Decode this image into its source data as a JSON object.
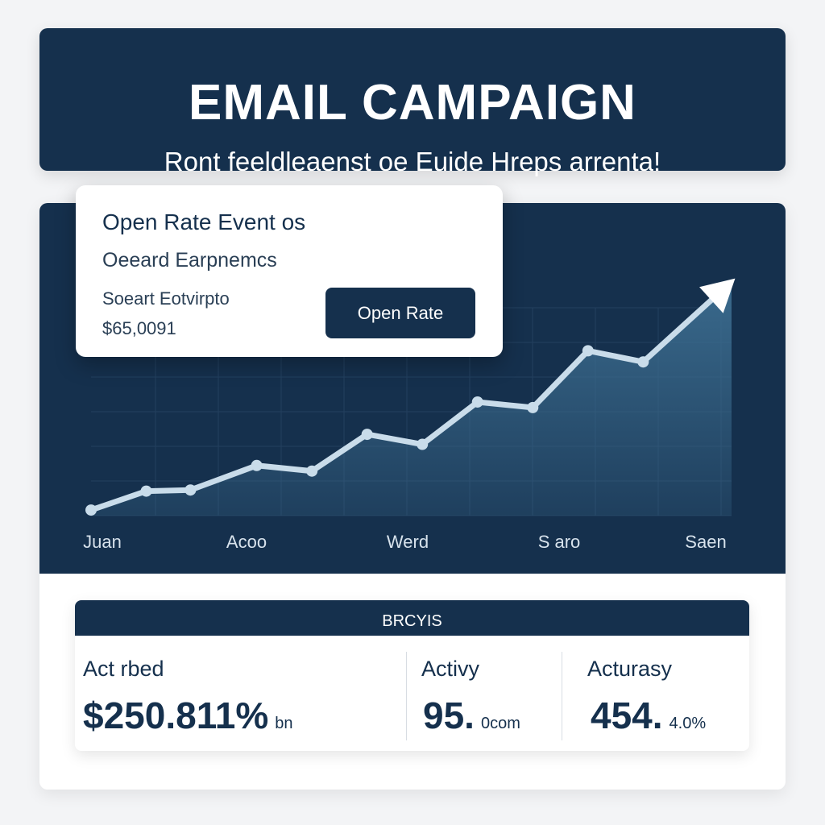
{
  "header": {
    "title": "EMAIL CAMPAIGN",
    "subtitle": "Ront feeldleaenst oe Euide Hreps arrenta!"
  },
  "popup": {
    "title": "Open Rate Event os",
    "subtitle": "Oeeard Earpnemcs",
    "label": "Soeart Eotvirpto",
    "value": "$65,0091",
    "button_label": "Open Rate"
  },
  "chart_data": {
    "type": "area",
    "x_labels": [
      "Juan",
      "Acoo",
      "Werd",
      "S aro",
      "Saen"
    ],
    "points": [
      {
        "x": 0,
        "y": 5
      },
      {
        "x": 0.5,
        "y": 22
      },
      {
        "x": 0.9,
        "y": 23
      },
      {
        "x": 1.5,
        "y": 45
      },
      {
        "x": 2.0,
        "y": 40
      },
      {
        "x": 2.5,
        "y": 73
      },
      {
        "x": 3.0,
        "y": 64
      },
      {
        "x": 3.5,
        "y": 102
      },
      {
        "x": 4.0,
        "y": 97
      },
      {
        "x": 4.5,
        "y": 148
      },
      {
        "x": 5.0,
        "y": 138
      },
      {
        "x": 5.8,
        "y": 210
      }
    ],
    "xlim": [
      0,
      5.8
    ],
    "ylim": [
      0,
      230
    ],
    "grid": true,
    "line_color": "#c9dcea",
    "fill_color": "#3c6d90",
    "arrow_end": true
  },
  "stats": {
    "header": "BRCYIS",
    "items": [
      {
        "label": "Act rbed",
        "value": "$250.811%",
        "unit": "bn"
      },
      {
        "label": "Activy",
        "value": "95.",
        "unit": "0com"
      },
      {
        "label": "Acturasy",
        "value": "454.",
        "unit": "4.0%"
      }
    ]
  },
  "colors": {
    "navy": "#15304d",
    "background": "#f3f4f6",
    "card": "#ffffff"
  }
}
